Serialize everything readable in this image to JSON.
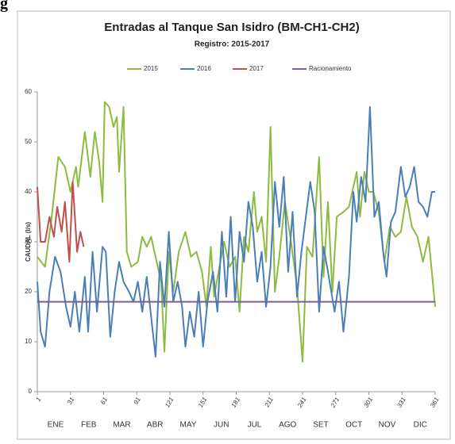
{
  "caption_fragment": "g",
  "chart_data": {
    "type": "line",
    "title": "Entradas al Tanque San Isidro (BM-CH1-CH2)",
    "subtitle": "Registro: 2015-2017",
    "ylabel": "CAUDAL (l/s)",
    "xlim": [
      1,
      361
    ],
    "xticks": [
      1,
      31,
      61,
      91,
      121,
      151,
      181,
      211,
      241,
      271,
      301,
      331,
      361
    ],
    "ylim": [
      0,
      60
    ],
    "yticks": [
      0,
      10,
      20,
      30,
      40,
      50,
      60
    ],
    "months": [
      "ENE",
      "FEB",
      "MAR",
      "ABR",
      "MAY",
      "JUN",
      "JUL",
      "AGO",
      "SET",
      "OCT",
      "NOV",
      "DIC"
    ],
    "legend": "top",
    "series": [
      {
        "name": "2015",
        "color": "#8dbb3f",
        "x": [
          1,
          8,
          14,
          20,
          26,
          31,
          36,
          38,
          44,
          49,
          53,
          57,
          60,
          62,
          66,
          70,
          73,
          75,
          79,
          82,
          86,
          92,
          96,
          100,
          104,
          108,
          113,
          116,
          120,
          124,
          129,
          135,
          140,
          145,
          150,
          154,
          158,
          161,
          165,
          170,
          175,
          180,
          184,
          188,
          192,
          197,
          200,
          204,
          208,
          212,
          216,
          220,
          225,
          230,
          236,
          241,
          245,
          250,
          256,
          260,
          264,
          268,
          272,
          278,
          283,
          290,
          293,
          297,
          301,
          305,
          310,
          315,
          320,
          325,
          330,
          335,
          340,
          345,
          350,
          355,
          361
        ],
        "values": [
          27,
          25,
          35,
          47,
          45,
          40,
          45,
          41,
          52,
          43,
          52,
          46,
          38,
          58,
          57,
          53,
          55,
          44,
          57,
          28,
          25,
          26,
          31,
          29,
          31,
          27,
          22,
          8,
          28,
          20,
          28,
          32,
          27,
          28,
          24,
          17,
          29,
          19,
          24,
          30,
          25,
          27,
          16,
          31,
          28,
          40,
          32,
          35,
          26,
          53,
          20,
          27,
          38,
          31,
          21,
          6,
          29,
          27,
          47,
          23,
          38,
          20,
          35,
          36,
          37,
          44,
          35,
          44,
          40,
          40,
          36,
          26,
          33,
          31,
          32,
          39,
          33,
          31,
          26,
          31,
          17
        ]
      },
      {
        "name": "2016",
        "color": "#4a7fb5",
        "x": [
          1,
          4,
          8,
          12,
          17,
          22,
          27,
          31,
          35,
          39,
          44,
          47,
          51,
          55,
          60,
          63,
          67,
          71,
          75,
          79,
          84,
          88,
          92,
          96,
          100,
          104,
          108,
          112,
          116,
          120,
          124,
          128,
          132,
          135,
          139,
          143,
          147,
          151,
          155,
          160,
          164,
          168,
          172,
          176,
          180,
          184,
          188,
          192,
          196,
          200,
          204,
          208,
          212,
          216,
          220,
          224,
          228,
          232,
          236,
          240,
          244,
          248,
          252,
          256,
          260,
          264,
          270,
          274,
          278,
          283,
          287,
          290,
          294,
          298,
          302,
          306,
          310,
          314,
          317,
          321,
          325,
          330,
          334,
          338,
          342,
          346,
          350,
          354,
          358,
          361
        ],
        "values": [
          22,
          12,
          9,
          20,
          27,
          24,
          17,
          13,
          20,
          12,
          23,
          12,
          28,
          16,
          29,
          28,
          11,
          20,
          26,
          22,
          20,
          18,
          22,
          16,
          23,
          15,
          7,
          26,
          17,
          32,
          18,
          22,
          17,
          9,
          16,
          11,
          20,
          9,
          18,
          24,
          16,
          32,
          19,
          35,
          18,
          32,
          26,
          38,
          33,
          22,
          28,
          17,
          25,
          42,
          33,
          43,
          24,
          36,
          19,
          28,
          35,
          42,
          36,
          16,
          29,
          24,
          16,
          22,
          12,
          23,
          40,
          34,
          43,
          38,
          57,
          35,
          38,
          28,
          23,
          34,
          36,
          45,
          39,
          41,
          45,
          38,
          37,
          35,
          40,
          40
        ]
      },
      {
        "name": "2017",
        "color": "#c0504d",
        "x": [
          1,
          4,
          8,
          12,
          16,
          19,
          23,
          26,
          30,
          33,
          37,
          40,
          43
        ],
        "values": [
          41,
          30,
          30,
          35,
          31,
          37,
          32,
          38,
          26,
          42,
          28,
          32,
          29
        ]
      },
      {
        "name": "Racionamiento",
        "color": "#7b5ba6",
        "x": [
          1,
          361
        ],
        "values": [
          18,
          18
        ]
      }
    ]
  }
}
